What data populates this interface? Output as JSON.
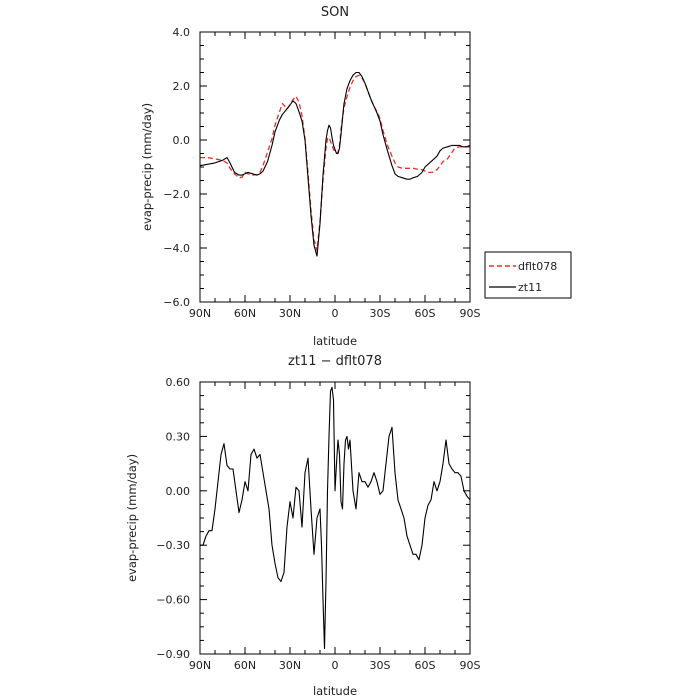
{
  "chart_data": [
    {
      "type": "line",
      "title": "SON",
      "xlabel": "latitude",
      "ylabel": "evap-precip (mm/day)",
      "xlim": [
        90,
        -90
      ],
      "ylim": [
        -6,
        4
      ],
      "x_ticks": [
        90,
        60,
        30,
        0,
        -30,
        -60,
        -90
      ],
      "x_tick_labels": [
        "90N",
        "60N",
        "30N",
        "0",
        "30S",
        "60S",
        "90S"
      ],
      "y_ticks": [
        -6,
        -4,
        -2,
        0,
        2,
        4
      ],
      "y_tick_labels": [
        "−6.0",
        "−4.0",
        "−2.0",
        "0.0",
        "2.0",
        "4.0"
      ],
      "legend": {
        "placement": "right-outside"
      },
      "series": [
        {
          "name": "dflt078",
          "color": "#e8302a",
          "dash": "dashed",
          "x": [
            90,
            85,
            80,
            75,
            72,
            70,
            67,
            64,
            62,
            60,
            58,
            55,
            52,
            50,
            48,
            45,
            42,
            40,
            37,
            35,
            32,
            30,
            28,
            26,
            24,
            22,
            20,
            18,
            16,
            14,
            12,
            10,
            8,
            6,
            5,
            4,
            3,
            2,
            1,
            0,
            -1,
            -2,
            -3,
            -4,
            -5,
            -6,
            -8,
            -10,
            -12,
            -14,
            -16,
            -18,
            -20,
            -22,
            -24,
            -26,
            -28,
            -30,
            -32,
            -35,
            -38,
            -40,
            -42,
            -45,
            -48,
            -50,
            -52,
            -55,
            -58,
            -60,
            -62,
            -65,
            -68,
            -70,
            -72,
            -75,
            -78,
            -80,
            -83,
            -85,
            -88,
            -90
          ],
          "y": [
            -0.65,
            -0.65,
            -0.7,
            -0.75,
            -0.85,
            -1.05,
            -1.25,
            -1.4,
            -1.38,
            -1.2,
            -1.25,
            -1.3,
            -1.28,
            -1.2,
            -0.95,
            -0.45,
            0.05,
            0.55,
            1.05,
            1.35,
            1.15,
            1.3,
            1.5,
            1.62,
            1.4,
            0.9,
            0.05,
            -1.2,
            -2.6,
            -3.7,
            -4.1,
            -3.0,
            -1.5,
            -0.3,
            0.05,
            0.1,
            -0.05,
            -0.2,
            -0.35,
            -0.45,
            -0.5,
            -0.45,
            -0.2,
            0.4,
            0.8,
            1.2,
            1.6,
            1.95,
            2.2,
            2.35,
            2.4,
            2.3,
            2.1,
            1.8,
            1.5,
            1.25,
            1.05,
            0.8,
            0.35,
            -0.2,
            -0.6,
            -0.85,
            -1.0,
            -1.05,
            -1.05,
            -1.05,
            -1.05,
            -1.08,
            -1.1,
            -1.15,
            -1.2,
            -1.2,
            -1.1,
            -0.95,
            -0.8,
            -0.7,
            -0.45,
            -0.3,
            -0.25,
            -0.25,
            -0.25,
            -0.25
          ]
        },
        {
          "name": "zt11",
          "color": "#000000",
          "dash": "solid",
          "x": [
            90,
            85,
            80,
            75,
            72,
            70,
            67,
            64,
            62,
            60,
            58,
            55,
            52,
            50,
            48,
            45,
            42,
            40,
            37,
            35,
            32,
            30,
            28,
            26,
            24,
            22,
            20,
            18,
            16,
            14,
            12,
            10,
            8,
            6,
            5,
            4,
            3,
            2,
            1,
            0,
            -1,
            -2,
            -3,
            -4,
            -5,
            -6,
            -8,
            -10,
            -12,
            -14,
            -16,
            -18,
            -20,
            -22,
            -24,
            -26,
            -28,
            -30,
            -32,
            -35,
            -38,
            -40,
            -42,
            -45,
            -48,
            -50,
            -52,
            -55,
            -58,
            -60,
            -62,
            -65,
            -68,
            -70,
            -72,
            -75,
            -78,
            -80,
            -83,
            -85,
            -88,
            -90
          ],
          "y": [
            -0.95,
            -0.9,
            -0.85,
            -0.75,
            -0.65,
            -0.85,
            -1.2,
            -1.3,
            -1.3,
            -1.25,
            -1.2,
            -1.25,
            -1.3,
            -1.25,
            -1.15,
            -0.8,
            -0.2,
            0.3,
            0.75,
            0.95,
            1.15,
            1.3,
            1.45,
            1.35,
            1.05,
            0.7,
            0.0,
            -1.4,
            -2.8,
            -3.9,
            -4.3,
            -3.1,
            -1.3,
            0.0,
            0.35,
            0.55,
            0.45,
            0.1,
            -0.2,
            -0.35,
            -0.5,
            -0.5,
            -0.3,
            0.2,
            0.8,
            1.35,
            1.9,
            2.2,
            2.4,
            2.5,
            2.5,
            2.35,
            2.1,
            1.8,
            1.5,
            1.25,
            1.0,
            0.7,
            0.2,
            -0.4,
            -0.95,
            -1.25,
            -1.35,
            -1.4,
            -1.45,
            -1.45,
            -1.4,
            -1.35,
            -1.2,
            -1.0,
            -0.9,
            -0.75,
            -0.6,
            -0.4,
            -0.3,
            -0.25,
            -0.2,
            -0.2,
            -0.2,
            -0.25,
            -0.25,
            -0.2
          ]
        }
      ]
    },
    {
      "type": "line",
      "title": "zt11 − dflt078",
      "xlabel": "latitude",
      "ylabel": "evap-precip (mm/day)",
      "xlim": [
        90,
        -90
      ],
      "ylim": [
        -0.9,
        0.6
      ],
      "x_ticks": [
        90,
        60,
        30,
        0,
        -30,
        -60,
        -90
      ],
      "x_tick_labels": [
        "90N",
        "60N",
        "30N",
        "0",
        "30S",
        "60S",
        "90S"
      ],
      "y_ticks": [
        -0.9,
        -0.6,
        -0.3,
        0.0,
        0.3,
        0.6
      ],
      "y_tick_labels": [
        "−0.90",
        "−0.60",
        "−0.30",
        "0.00",
        "0.30",
        "0.60"
      ],
      "series": [
        {
          "name": "",
          "color": "#000000",
          "dash": "solid",
          "x": [
            90,
            88,
            86,
            84,
            82,
            80,
            78,
            76,
            74,
            72,
            70,
            68,
            66,
            64,
            62,
            60,
            58,
            56,
            54,
            52,
            50,
            48,
            46,
            44,
            42,
            40,
            38,
            36,
            34,
            32,
            30,
            28,
            26,
            24,
            22,
            20,
            18,
            16,
            14,
            12,
            10,
            9,
            8,
            7,
            6,
            5,
            4,
            3,
            2,
            1,
            0,
            -1,
            -2,
            -3,
            -4,
            -5,
            -6,
            -7,
            -8,
            -9,
            -10,
            -12,
            -14,
            -16,
            -18,
            -20,
            -22,
            -24,
            -26,
            -28,
            -30,
            -32,
            -34,
            -36,
            -38,
            -40,
            -42,
            -44,
            -46,
            -48,
            -50,
            -52,
            -54,
            -56,
            -58,
            -60,
            -62,
            -64,
            -66,
            -68,
            -70,
            -72,
            -74,
            -76,
            -78,
            -80,
            -82,
            -84,
            -86,
            -88,
            -90
          ],
          "y": [
            -0.3,
            -0.3,
            -0.25,
            -0.22,
            -0.22,
            -0.1,
            0.05,
            0.2,
            0.26,
            0.14,
            0.12,
            0.12,
            0.0,
            -0.12,
            -0.05,
            0.05,
            0.0,
            0.2,
            0.23,
            0.18,
            0.2,
            0.1,
            0.0,
            -0.1,
            -0.3,
            -0.4,
            -0.48,
            -0.5,
            -0.45,
            -0.2,
            -0.06,
            -0.15,
            0.02,
            0.0,
            -0.2,
            0.1,
            0.18,
            -0.1,
            -0.35,
            -0.15,
            -0.1,
            -0.3,
            -0.6,
            -0.87,
            -0.5,
            0.0,
            0.3,
            0.55,
            0.57,
            0.5,
            0.0,
            0.15,
            0.28,
            0.2,
            -0.06,
            -0.1,
            0.15,
            0.28,
            0.3,
            0.23,
            0.28,
            0.0,
            -0.1,
            0.1,
            0.05,
            0.05,
            0.02,
            0.05,
            0.1,
            0.05,
            -0.02,
            0.0,
            0.15,
            0.3,
            0.35,
            0.1,
            -0.05,
            -0.1,
            -0.15,
            -0.25,
            -0.3,
            -0.35,
            -0.35,
            -0.38,
            -0.3,
            -0.15,
            -0.08,
            -0.05,
            0.05,
            0.0,
            0.05,
            0.15,
            0.28,
            0.15,
            0.12,
            0.1,
            0.1,
            0.08,
            0.0,
            -0.03,
            -0.05
          ]
        }
      ]
    }
  ]
}
